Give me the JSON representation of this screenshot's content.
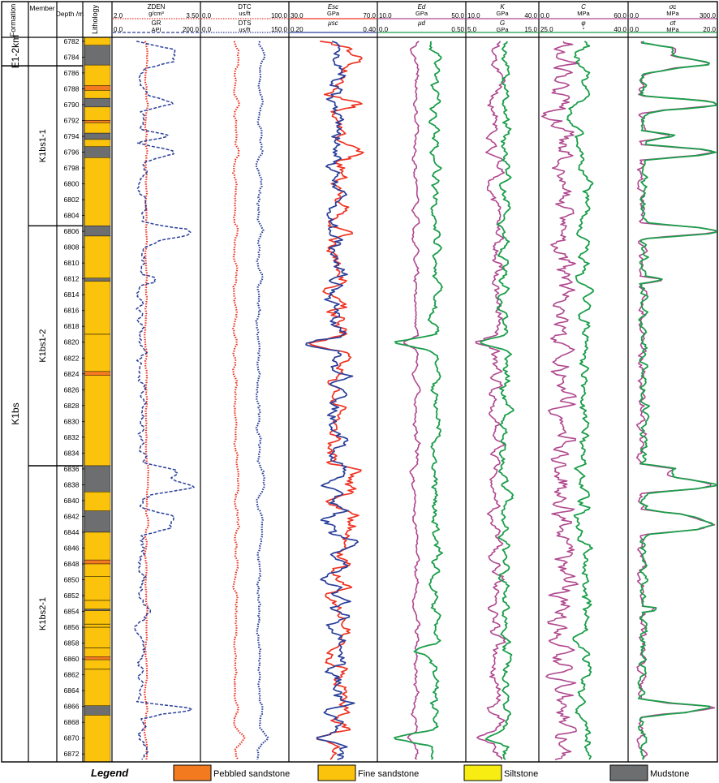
{
  "chart_data": {
    "type": "line",
    "headers": {
      "formation": "Formation",
      "member": "Member",
      "depth": "Depth /m",
      "lithology": "Lithology"
    },
    "depth_range": [
      6781.5,
      6873
    ],
    "depth_ticks": [
      6782,
      6784,
      6786,
      6788,
      6790,
      6792,
      6794,
      6796,
      6798,
      6800,
      6802,
      6804,
      6806,
      6808,
      6810,
      6812,
      6814,
      6816,
      6818,
      6820,
      6822,
      6824,
      6826,
      6828,
      6830,
      6832,
      6834,
      6836,
      6838,
      6840,
      6842,
      6844,
      6846,
      6848,
      6850,
      6852,
      6854,
      6856,
      6858,
      6860,
      6862,
      6864,
      6866,
      6868,
      6870,
      6872
    ],
    "formations": [
      {
        "label": "E1-2km",
        "top": 6781.5,
        "bottom": 6785.1
      },
      {
        "label": "K1bs",
        "top": 6785.1,
        "bottom": 6873
      }
    ],
    "members": [
      {
        "label": "K1bs1-1",
        "top": 6785.1,
        "bottom": 6805.3
      },
      {
        "label": "K1bs1-2",
        "top": 6805.3,
        "bottom": 6835.6
      },
      {
        "label": "K1bs2-1",
        "top": 6835.6,
        "bottom": 6873
      }
    ],
    "lithology": [
      {
        "top": 6781.5,
        "bottom": 6782.5,
        "type": "fine"
      },
      {
        "top": 6782.5,
        "bottom": 6785.0,
        "type": "mud"
      },
      {
        "top": 6785.0,
        "bottom": 6787.6,
        "type": "fine"
      },
      {
        "top": 6787.6,
        "bottom": 6788.2,
        "type": "pebbled"
      },
      {
        "top": 6788.2,
        "bottom": 6789.2,
        "type": "fine"
      },
      {
        "top": 6789.2,
        "bottom": 6790.3,
        "type": "mud"
      },
      {
        "top": 6790.3,
        "bottom": 6792.0,
        "type": "fine"
      },
      {
        "top": 6792.0,
        "bottom": 6792.3,
        "type": "pebbled"
      },
      {
        "top": 6792.3,
        "bottom": 6793.6,
        "type": "fine"
      },
      {
        "top": 6793.6,
        "bottom": 6794.4,
        "type": "mud"
      },
      {
        "top": 6794.4,
        "bottom": 6795.3,
        "type": "fine"
      },
      {
        "top": 6795.3,
        "bottom": 6796.7,
        "type": "mud"
      },
      {
        "top": 6796.7,
        "bottom": 6805.3,
        "type": "fine"
      },
      {
        "top": 6805.3,
        "bottom": 6806.6,
        "type": "mud"
      },
      {
        "top": 6806.6,
        "bottom": 6811.9,
        "type": "fine"
      },
      {
        "top": 6811.9,
        "bottom": 6812.3,
        "type": "mud"
      },
      {
        "top": 6812.3,
        "bottom": 6823.7,
        "type": "fine"
      },
      {
        "top": 6823.7,
        "bottom": 6824.2,
        "type": "pebbled"
      },
      {
        "top": 6824.2,
        "bottom": 6835.6,
        "type": "fine"
      },
      {
        "top": 6835.6,
        "bottom": 6838.9,
        "type": "mud"
      },
      {
        "top": 6838.9,
        "bottom": 6841.3,
        "type": "fine"
      },
      {
        "top": 6841.3,
        "bottom": 6844.0,
        "type": "mud"
      },
      {
        "top": 6844.0,
        "bottom": 6847.5,
        "type": "fine"
      },
      {
        "top": 6847.5,
        "bottom": 6848.0,
        "type": "pebbled"
      },
      {
        "top": 6848.0,
        "bottom": 6853.7,
        "type": "fine"
      },
      {
        "top": 6853.7,
        "bottom": 6853.9,
        "type": "mud"
      },
      {
        "top": 6853.9,
        "bottom": 6859.7,
        "type": "fine"
      },
      {
        "top": 6859.7,
        "bottom": 6860.1,
        "type": "pebbled"
      },
      {
        "top": 6860.1,
        "bottom": 6865.9,
        "type": "fine"
      },
      {
        "top": 6865.9,
        "bottom": 6867.1,
        "type": "mud"
      },
      {
        "top": 6867.1,
        "bottom": 6873.0,
        "type": "fine"
      }
    ],
    "tracks": [
      {
        "curves": [
          {
            "name": "ZDEN",
            "unit": "g/cm³",
            "min": "2.0",
            "max": "3.50",
            "color": "#ee3322",
            "dash": "dot"
          },
          {
            "name": "GR",
            "unit": "API",
            "min": "0.0",
            "max": "200.0",
            "color": "#2a3f9a",
            "dash": "dash"
          }
        ]
      },
      {
        "curves": [
          {
            "name": "DTC",
            "unit": "us/ft",
            "min": "0.0",
            "max": "100.0",
            "color": "#ee3322",
            "dash": "dot"
          },
          {
            "name": "DTS",
            "unit": "us/ft",
            "min": "0.0",
            "max": "150.0",
            "color": "#2a3f9a",
            "dash": "dot"
          }
        ]
      },
      {
        "curves": [
          {
            "name": "Esc",
            "unit": "GPa",
            "min": "30.0",
            "max": "70.0",
            "color": "#ee3322",
            "dash": "solid"
          },
          {
            "name": "μsc",
            "unit": "",
            "min": "0.20",
            "max": "0.40",
            "color": "#2a3f9a",
            "dash": "solid"
          }
        ]
      },
      {
        "curves": [
          {
            "name": "Ed",
            "unit": "GPa",
            "min": "10.0",
            "max": "50.0",
            "color": "#b0488f",
            "dash": "solid"
          },
          {
            "name": "μd",
            "unit": "",
            "min": "0.0",
            "max": "0.50",
            "color": "#1a9e4a",
            "dash": "solid"
          }
        ]
      },
      {
        "curves": [
          {
            "name": "K",
            "unit": "GPa",
            "min": "10.0",
            "max": "40.0",
            "color": "#b0488f",
            "dash": "solid"
          },
          {
            "name": "G",
            "unit": "GPa",
            "min": "5.0",
            "max": "15.0",
            "color": "#1a9e4a",
            "dash": "solid"
          }
        ]
      },
      {
        "curves": [
          {
            "name": "C",
            "unit": "MPa",
            "min": "0.0",
            "max": "60.0",
            "color": "#b0488f",
            "dash": "solid"
          },
          {
            "name": "φ",
            "unit": "°",
            "min": "25.0",
            "max": "40.0",
            "color": "#1a9e4a",
            "dash": "solid"
          }
        ]
      },
      {
        "curves": [
          {
            "name": "σc",
            "unit": "MPa",
            "min": "0.0",
            "max": "300.0",
            "color": "#b0488f",
            "dash": "solid"
          },
          {
            "name": "σt",
            "unit": "MPa",
            "min": "0.0",
            "max": "20.0",
            "color": "#1a9e4a",
            "dash": "solid"
          }
        ]
      }
    ],
    "legend": {
      "title": "Legend",
      "items": [
        {
          "label": "Pebbled sandstone",
          "color": "#f47a20"
        },
        {
          "label": "Fine sandstone",
          "color": "#fcc30d"
        },
        {
          "label": "Siltstone",
          "color": "#f7ed12"
        },
        {
          "label": "Mudstone",
          "color": "#6d6e70"
        }
      ]
    },
    "colors": {
      "fine": "#fcc30d",
      "mud": "#6d6e70",
      "pebbled": "#f47a20",
      "silt": "#f7ed12"
    }
  }
}
